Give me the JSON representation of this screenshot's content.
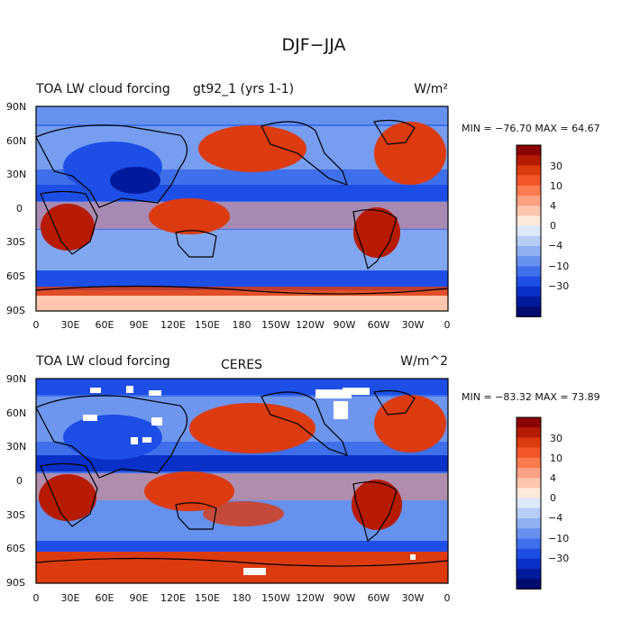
{
  "figure": {
    "title": "DJF−JJA"
  },
  "chart_data": [
    {
      "type": "heatmap",
      "title_left": "TOA LW cloud forcing",
      "title_center": "gt92_1 (yrs 1-1)",
      "units": "W/m²",
      "stats": "MIN = −76.70  MAX =  64.67",
      "x_ticks": [
        "0",
        "30E",
        "60E",
        "90E",
        "120E",
        "150E",
        "180",
        "150W",
        "120W",
        "90W",
        "60W",
        "30W",
        "0"
      ],
      "y_ticks": [
        "90N",
        "60N",
        "30N",
        "0",
        "30S",
        "60S",
        "90S"
      ],
      "xlim": [
        0,
        360
      ],
      "ylim": [
        -90,
        90
      ],
      "legend": {
        "placement": "right",
        "labels": [
          "30",
          "10",
          "4",
          "0",
          "−4",
          "−10",
          "−30"
        ],
        "colors": [
          "#8b0000",
          "#b61a00",
          "#dc3a0f",
          "#f2562a",
          "#fb7b4f",
          "#fca184",
          "#fdc6ad",
          "#fde8dc",
          "#dce8fb",
          "#b5cdf7",
          "#8eb1f2",
          "#6691ee",
          "#3f6fea",
          "#1d4ee6",
          "#0a30c8",
          "#001a9e",
          "#000c6e"
        ]
      }
    },
    {
      "type": "heatmap",
      "title_left": "TOA LW cloud forcing",
      "title_center": "CERES",
      "units": "W/m^2",
      "stats": "MIN = −83.32  MAX =  73.89",
      "x_ticks": [
        "0",
        "30E",
        "60E",
        "90E",
        "120E",
        "150E",
        "180",
        "150W",
        "120W",
        "90W",
        "60W",
        "30W",
        "0"
      ],
      "y_ticks": [
        "90N",
        "60N",
        "30N",
        "0",
        "30S",
        "60S",
        "90S"
      ],
      "xlim": [
        0,
        360
      ],
      "ylim": [
        -90,
        90
      ],
      "legend": {
        "placement": "right",
        "labels": [
          "30",
          "10",
          "4",
          "0",
          "−4",
          "−10",
          "−30"
        ],
        "colors": [
          "#8b0000",
          "#b61a00",
          "#dc3a0f",
          "#f2562a",
          "#fb7b4f",
          "#fca184",
          "#fdc6ad",
          "#fde8dc",
          "#dce8fb",
          "#b5cdf7",
          "#8eb1f2",
          "#6691ee",
          "#3f6fea",
          "#1d4ee6",
          "#0a30c8",
          "#001a9e",
          "#000c6e"
        ]
      }
    }
  ]
}
